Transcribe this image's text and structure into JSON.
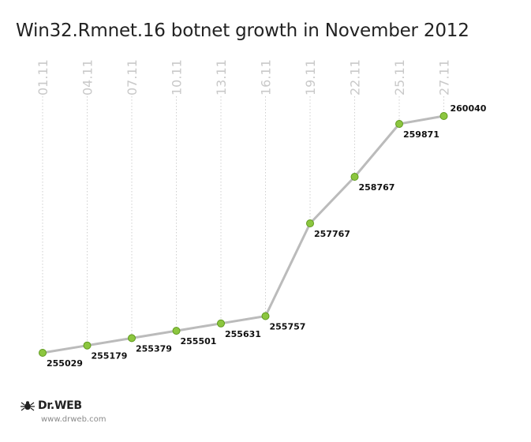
{
  "chart_data": {
    "type": "line",
    "title": "Win32.Rmnet.16 botnet growth in November 2012",
    "categories": [
      "01.11",
      "04.11",
      "07.11",
      "10.11",
      "13.11",
      "16.11",
      "19.11",
      "22.11",
      "25.11",
      "27.11"
    ],
    "series": [
      {
        "values": [
          255029,
          255179,
          255379,
          255501,
          255631,
          255757,
          257767,
          258767,
          259871,
          260040
        ]
      }
    ],
    "data_labels": [
      "255029",
      "255179",
      "255379",
      "255501",
      "255631",
      "255757",
      "257767",
      "258767",
      "259871",
      "260040"
    ],
    "xlabel": "",
    "ylabel": "",
    "ylim": [
      255029,
      260040
    ],
    "grid": "vertical dotted lines at each category",
    "legend": "none",
    "colors": {
      "line": "#bbbbbb",
      "marker_fill": "#8cc63f",
      "marker_stroke": "#5f9a1e",
      "gridline": "#cfcfcf",
      "tick_label": "#c9c9c9"
    }
  },
  "branding": {
    "logo_text": "Dr.WEB",
    "url": "www.drweb.com",
    "logo_icon": "spider-icon"
  }
}
